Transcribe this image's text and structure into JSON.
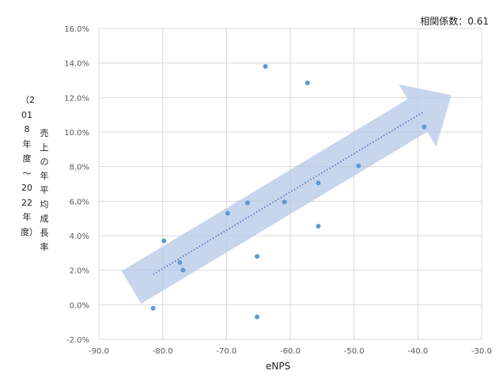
{
  "corr_label": "相関係数：0.61",
  "chart_data": {
    "type": "scatter",
    "xlabel": "eNPS",
    "ylabel": "売上の年平均成長率",
    "ylabel_sub": "（2018年度～2022年度）",
    "xlim": [
      -90,
      -30
    ],
    "ylim": [
      -2,
      16
    ],
    "x_ticks": [
      -90,
      -80,
      -70,
      -60,
      -50,
      -40,
      -30
    ],
    "y_ticks": [
      -2,
      0,
      2,
      4,
      6,
      8,
      10,
      12,
      14,
      16
    ],
    "x_tick_labels": [
      "-90.0",
      "-80.0",
      "-70.0",
      "-60.0",
      "-50.0",
      "-40.0",
      "-30.0"
    ],
    "y_tick_labels": [
      "-2.0%",
      "0.0%",
      "2.0%",
      "4.0%",
      "6.0%",
      "8.0%",
      "10.0%",
      "12.0%",
      "14.0%",
      "16.0%"
    ],
    "grid": true,
    "trendline": true,
    "point_color": "#5B9BD5",
    "arrow_color": "#B4C7E7",
    "points": [
      {
        "x": -81.5,
        "y": -0.2
      },
      {
        "x": -79.8,
        "y": 3.7
      },
      {
        "x": -77.3,
        "y": 2.45
      },
      {
        "x": -76.8,
        "y": 2.0
      },
      {
        "x": -69.8,
        "y": 5.3
      },
      {
        "x": -66.7,
        "y": 5.9
      },
      {
        "x": -65.2,
        "y": 2.8
      },
      {
        "x": -65.2,
        "y": -0.7
      },
      {
        "x": -63.9,
        "y": 13.8
      },
      {
        "x": -60.9,
        "y": 5.95
      },
      {
        "x": -57.3,
        "y": 12.85
      },
      {
        "x": -55.6,
        "y": 7.05
      },
      {
        "x": -55.6,
        "y": 4.55
      },
      {
        "x": -49.3,
        "y": 8.05
      },
      {
        "x": -39.0,
        "y": 10.3
      }
    ]
  }
}
